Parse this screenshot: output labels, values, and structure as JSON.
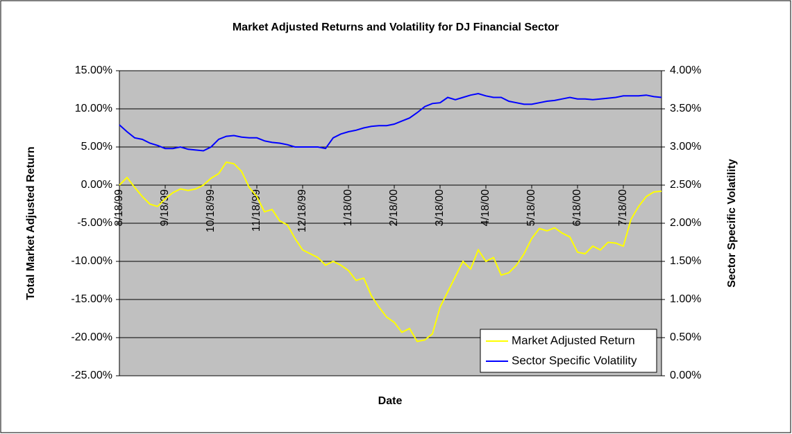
{
  "chart_data": {
    "type": "line",
    "title": "Market Adjusted Returns and Volatility for DJ Financial Sector",
    "xlabel": "Date",
    "ylabel": "Total Market Adjusted Return",
    "y2label": "Sector Specific Volatility",
    "categories": [
      "8/18/99",
      null,
      null,
      null,
      null,
      null,
      "9/18/99",
      null,
      null,
      null,
      null,
      null,
      "10/18/99",
      null,
      null,
      null,
      null,
      null,
      "11/18/99",
      null,
      null,
      null,
      null,
      null,
      "12/18/99",
      null,
      null,
      null,
      null,
      null,
      "1/18/00",
      null,
      null,
      null,
      null,
      null,
      "2/18/00",
      null,
      null,
      null,
      null,
      null,
      "3/18/00",
      null,
      null,
      null,
      null,
      null,
      "4/18/00",
      null,
      null,
      null,
      null,
      null,
      "5/18/00",
      null,
      null,
      null,
      null,
      null,
      "6/18/00",
      null,
      null,
      null,
      null,
      null,
      "7/18/00",
      null,
      null,
      null,
      null,
      null
    ],
    "series": [
      {
        "name": "Market Adjusted Return",
        "color": "#ffff00",
        "axis": "y",
        "values": [
          0.0,
          1.0,
          -0.3,
          -1.5,
          -2.5,
          -2.8,
          -1.8,
          -1.0,
          -0.5,
          -0.7,
          -0.5,
          0.0,
          0.9,
          1.5,
          3.0,
          2.8,
          1.8,
          -0.3,
          -1.5,
          -3.5,
          -3.2,
          -4.7,
          -5.2,
          -7.0,
          -8.5,
          -9.0,
          -9.5,
          -10.5,
          -10.0,
          -10.5,
          -11.2,
          -12.5,
          -12.2,
          -14.5,
          -16.0,
          -17.3,
          -18.0,
          -19.3,
          -18.8,
          -20.5,
          -20.3,
          -19.5,
          -16.0,
          -14.0,
          -12.0,
          -10.0,
          -11.0,
          -8.5,
          -10.0,
          -9.5,
          -11.8,
          -11.5,
          -10.5,
          -9.0,
          -7.0,
          -5.7,
          -6.0,
          -5.6,
          -6.3,
          -6.8,
          -8.8,
          -9.0,
          -8.0,
          -8.5,
          -7.5,
          -7.6,
          -8.0,
          -4.5,
          -2.8,
          -1.5,
          -0.9,
          -0.8
        ]
      },
      {
        "name": "Sector Specific Volatility",
        "color": "#0000ff",
        "axis": "y2",
        "values": [
          3.29,
          3.2,
          3.12,
          3.1,
          3.05,
          3.02,
          2.98,
          2.98,
          3.0,
          2.97,
          2.96,
          2.95,
          3.0,
          3.1,
          3.14,
          3.15,
          3.13,
          3.12,
          3.12,
          3.08,
          3.06,
          3.05,
          3.03,
          3.0,
          3.0,
          3.0,
          3.0,
          2.98,
          3.12,
          3.17,
          3.2,
          3.22,
          3.25,
          3.27,
          3.28,
          3.28,
          3.3,
          3.34,
          3.38,
          3.45,
          3.53,
          3.57,
          3.58,
          3.65,
          3.62,
          3.65,
          3.68,
          3.7,
          3.67,
          3.65,
          3.65,
          3.6,
          3.58,
          3.56,
          3.56,
          3.58,
          3.6,
          3.61,
          3.63,
          3.65,
          3.63,
          3.63,
          3.62,
          3.63,
          3.64,
          3.65,
          3.67,
          3.67,
          3.67,
          3.68,
          3.66,
          3.65
        ]
      }
    ],
    "ylim": [
      -25,
      15
    ],
    "yticks": [
      {
        "value": -25,
        "label": "-25.00%"
      },
      {
        "value": -20,
        "label": "-20.00%"
      },
      {
        "value": -15,
        "label": "-15.00%"
      },
      {
        "value": -10,
        "label": "-10.00%"
      },
      {
        "value": -5,
        "label": "-5.00%"
      },
      {
        "value": 0,
        "label": "0.00%"
      },
      {
        "value": 5,
        "label": "5.00%"
      },
      {
        "value": 10,
        "label": "10.00%"
      },
      {
        "value": 15,
        "label": "15.00%"
      }
    ],
    "y2lim": [
      0,
      4
    ],
    "y2ticks": [
      {
        "value": 0,
        "label": "0.00%"
      },
      {
        "value": 0.5,
        "label": "0.50%"
      },
      {
        "value": 1,
        "label": "1.00%"
      },
      {
        "value": 1.5,
        "label": "1.50%"
      },
      {
        "value": 2,
        "label": "2.00%"
      },
      {
        "value": 2.5,
        "label": "2.50%"
      },
      {
        "value": 3,
        "label": "3.00%"
      },
      {
        "value": 3.5,
        "label": "3.50%"
      },
      {
        "value": 4,
        "label": "4.00%"
      }
    ],
    "grid": true,
    "legend": "lower right"
  }
}
